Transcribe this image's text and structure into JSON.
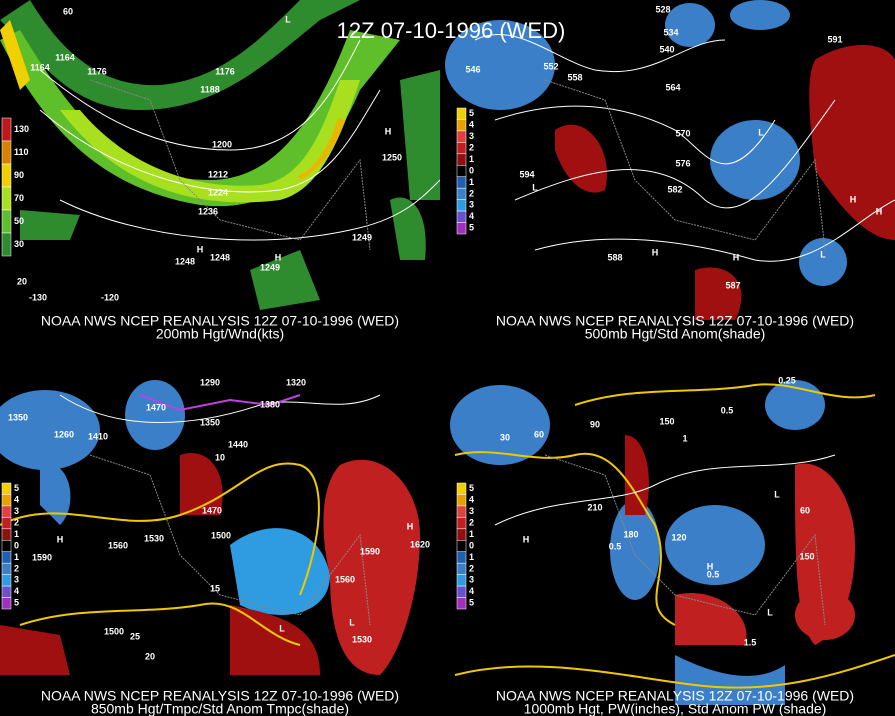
{
  "title": "12Z 07-10-1996 (WED)",
  "panels": [
    {
      "caption": "NOAA NWS NCEP REANALYSIS 12Z 07-10-1996 (WED)",
      "subtitle": "200mb Hgt/Wnd(kts)",
      "colorbar": [
        "130",
        "110",
        "90",
        "70",
        "50",
        "30"
      ],
      "labels": [
        "1164",
        "1176",
        "1164",
        "1176",
        "1188",
        "1200",
        "1212",
        "1224",
        "1236",
        "1248",
        "1248",
        "1249",
        "1249",
        "1250",
        "H",
        "H",
        "H",
        "L",
        "20",
        "-130",
        "-120",
        "60"
      ]
    },
    {
      "caption": "NOAA NWS NCEP REANALYSIS 12Z 07-10-1996 (WED)",
      "subtitle": "500mb Hgt/Std Anom(shade)",
      "colorbar": [
        "5",
        "4",
        "3",
        "2",
        "1",
        "0",
        "1",
        "2",
        "3",
        "4",
        "5"
      ],
      "labels": [
        "528",
        "534",
        "540",
        "546",
        "552",
        "558",
        "564",
        "570",
        "576",
        "582",
        "588",
        "L",
        "L",
        "L",
        "H",
        "H",
        "H",
        "H",
        "594",
        "587",
        "591"
      ]
    },
    {
      "caption": "NOAA NWS NCEP REANALYSIS 12Z 07-10-1996 (WED)",
      "subtitle": "850mb Hgt/Tmpc/Std Anom Tmpc(shade)",
      "colorbar": [
        "5",
        "4",
        "3",
        "2",
        "1",
        "0",
        "1",
        "2",
        "3",
        "4",
        "5"
      ],
      "labels": [
        "1350",
        "1260",
        "1410",
        "1470",
        "1290",
        "1320",
        "1350",
        "1380",
        "1440",
        "1470",
        "1500",
        "1530",
        "1560",
        "1590",
        "1620",
        "1560",
        "1530",
        "1590",
        "1500",
        "10",
        "15",
        "20",
        "25",
        "H",
        "H",
        "L",
        "L"
      ]
    },
    {
      "caption": "NOAA NWS NCEP REANALYSIS 12Z 07-10-1996 (WED)",
      "subtitle": "1000mb Hgt, PW(inches), Std Anom PW (shade)",
      "colorbar": [
        "5",
        "4",
        "3",
        "2",
        "1",
        "0",
        "1",
        "2",
        "3",
        "4",
        "5"
      ],
      "labels": [
        "30",
        "60",
        "90",
        "120",
        "150",
        "180",
        "210",
        "0.25",
        "0.5",
        "0.5",
        "0.5",
        "1",
        "1.5",
        "H",
        "H",
        "L",
        "L",
        "150",
        "60"
      ]
    }
  ]
}
